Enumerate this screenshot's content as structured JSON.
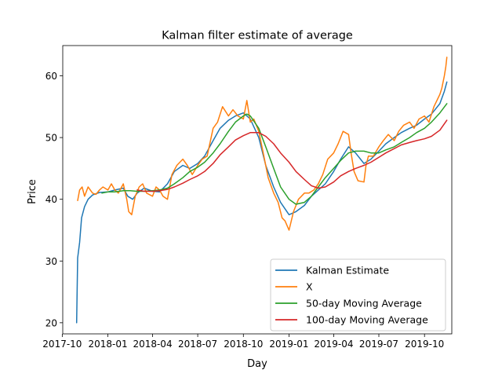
{
  "chart_data": {
    "type": "line",
    "title": "Kalman filter estimate of average",
    "xlabel": "Day",
    "ylabel": "Price",
    "xlim": [
      "2017-10-02",
      "2019-11-25"
    ],
    "ylim": [
      18.2,
      64.9
    ],
    "x_ticks": [
      {
        "date": "2017-10-01",
        "label": "2017-10"
      },
      {
        "date": "2018-01-01",
        "label": "2018-01"
      },
      {
        "date": "2018-04-01",
        "label": "2018-04"
      },
      {
        "date": "2018-07-01",
        "label": "2018-07"
      },
      {
        "date": "2018-10-01",
        "label": "2018-10"
      },
      {
        "date": "2019-01-01",
        "label": "2019-01"
      },
      {
        "date": "2019-04-01",
        "label": "2019-04"
      },
      {
        "date": "2019-07-01",
        "label": "2019-07"
      },
      {
        "date": "2019-10-01",
        "label": "2019-10"
      }
    ],
    "y_ticks": [
      20,
      30,
      40,
      50,
      60
    ],
    "grid": false,
    "legend_position": "lower-right",
    "series": [
      {
        "name": "Kalman Estimate",
        "color": "#1f77b4",
        "x": [
          "2017-10-30",
          "2017-11-01",
          "2017-11-05",
          "2017-11-09",
          "2017-11-15",
          "2017-11-22",
          "2017-12-01",
          "2017-12-15",
          "2018-01-01",
          "2018-01-15",
          "2018-02-01",
          "2018-02-10",
          "2018-02-20",
          "2018-03-01",
          "2018-03-15",
          "2018-04-01",
          "2018-04-15",
          "2018-05-01",
          "2018-05-15",
          "2018-06-01",
          "2018-06-15",
          "2018-07-01",
          "2018-07-15",
          "2018-08-01",
          "2018-08-15",
          "2018-09-01",
          "2018-09-15",
          "2018-10-01",
          "2018-10-15",
          "2018-11-01",
          "2018-11-15",
          "2018-12-01",
          "2018-12-15",
          "2019-01-01",
          "2019-01-15",
          "2019-02-01",
          "2019-02-15",
          "2019-03-01",
          "2019-03-15",
          "2019-04-01",
          "2019-04-15",
          "2019-05-01",
          "2019-05-15",
          "2019-06-01",
          "2019-06-15",
          "2019-07-01",
          "2019-07-15",
          "2019-08-01",
          "2019-08-15",
          "2019-09-01",
          "2019-09-15",
          "2019-10-01",
          "2019-10-15",
          "2019-11-01",
          "2019-11-10",
          "2019-11-15"
        ],
        "y": [
          20.0,
          30.5,
          33.0,
          37.0,
          38.8,
          40.0,
          40.7,
          41.1,
          41.2,
          41.5,
          41.8,
          40.5,
          40.0,
          41.0,
          41.8,
          41.3,
          41.2,
          42.5,
          44.5,
          45.5,
          45.0,
          45.8,
          47.0,
          49.5,
          51.5,
          52.8,
          53.5,
          54.0,
          53.0,
          50.0,
          45.5,
          42.0,
          39.5,
          37.5,
          38.0,
          39.0,
          40.5,
          41.5,
          42.5,
          44.5,
          46.5,
          48.5,
          47.5,
          45.8,
          46.5,
          47.8,
          49.0,
          50.0,
          50.8,
          51.5,
          52.0,
          53.0,
          53.8,
          55.5,
          57.5,
          59.0
        ]
      },
      {
        "name": "X",
        "color": "#ff7f0e",
        "x": [
          "2017-11-01",
          "2017-11-05",
          "2017-11-10",
          "2017-11-15",
          "2017-11-22",
          "2017-12-01",
          "2017-12-08",
          "2017-12-15",
          "2017-12-22",
          "2018-01-01",
          "2018-01-08",
          "2018-01-15",
          "2018-01-22",
          "2018-02-01",
          "2018-02-08",
          "2018-02-12",
          "2018-02-18",
          "2018-02-25",
          "2018-03-05",
          "2018-03-12",
          "2018-03-20",
          "2018-04-01",
          "2018-04-08",
          "2018-04-15",
          "2018-04-22",
          "2018-05-01",
          "2018-05-10",
          "2018-05-20",
          "2018-06-01",
          "2018-06-10",
          "2018-06-20",
          "2018-07-01",
          "2018-07-10",
          "2018-07-20",
          "2018-08-01",
          "2018-08-10",
          "2018-08-20",
          "2018-09-01",
          "2018-09-10",
          "2018-09-20",
          "2018-10-01",
          "2018-10-08",
          "2018-10-15",
          "2018-10-22",
          "2018-11-01",
          "2018-11-10",
          "2018-11-20",
          "2018-12-01",
          "2018-12-10",
          "2018-12-18",
          "2018-12-24",
          "2019-01-01",
          "2019-01-10",
          "2019-01-20",
          "2019-02-01",
          "2019-02-10",
          "2019-02-20",
          "2019-03-01",
          "2019-03-10",
          "2019-03-20",
          "2019-04-01",
          "2019-04-10",
          "2019-04-20",
          "2019-05-01",
          "2019-05-06",
          "2019-05-12",
          "2019-05-20",
          "2019-06-01",
          "2019-06-05",
          "2019-06-10",
          "2019-06-20",
          "2019-07-01",
          "2019-07-10",
          "2019-07-20",
          "2019-08-01",
          "2019-08-10",
          "2019-08-20",
          "2019-09-01",
          "2019-09-10",
          "2019-09-20",
          "2019-10-01",
          "2019-10-10",
          "2019-10-20",
          "2019-11-01",
          "2019-11-05",
          "2019-11-10",
          "2019-11-13",
          "2019-11-15"
        ],
        "y": [
          39.8,
          41.5,
          42.0,
          40.5,
          42.0,
          41.0,
          40.8,
          41.5,
          42.0,
          41.5,
          42.5,
          41.5,
          41.0,
          42.5,
          40.0,
          38.0,
          37.5,
          40.5,
          42.0,
          42.5,
          41.0,
          40.5,
          42.0,
          41.5,
          40.5,
          40.0,
          44.0,
          45.5,
          46.5,
          45.5,
          44.0,
          45.5,
          46.5,
          47.0,
          51.5,
          52.5,
          55.0,
          53.5,
          54.5,
          53.5,
          53.0,
          56.0,
          52.5,
          53.0,
          51.0,
          47.5,
          43.5,
          41.0,
          39.5,
          37.0,
          36.5,
          35.0,
          38.0,
          40.0,
          41.0,
          41.0,
          41.5,
          42.5,
          44.0,
          46.5,
          47.5,
          49.0,
          51.0,
          50.5,
          47.5,
          44.5,
          43.0,
          42.8,
          45.5,
          47.0,
          47.0,
          48.5,
          49.5,
          50.5,
          49.5,
          51.0,
          52.0,
          52.5,
          51.5,
          53.0,
          53.5,
          52.5,
          55.0,
          57.0,
          58.0,
          60.0,
          61.5,
          63.0
        ]
      },
      {
        "name": "50-day Moving Average",
        "color": "#2ca02c",
        "x": [
          "2017-12-20",
          "2018-01-01",
          "2018-01-15",
          "2018-02-01",
          "2018-02-15",
          "2018-03-01",
          "2018-03-15",
          "2018-04-01",
          "2018-04-15",
          "2018-05-01",
          "2018-05-15",
          "2018-06-01",
          "2018-06-15",
          "2018-07-01",
          "2018-07-15",
          "2018-08-01",
          "2018-08-15",
          "2018-09-01",
          "2018-09-15",
          "2018-10-01",
          "2018-10-08",
          "2018-10-15",
          "2018-11-01",
          "2018-11-15",
          "2018-12-01",
          "2018-12-15",
          "2019-01-01",
          "2019-01-15",
          "2019-02-01",
          "2019-02-15",
          "2019-03-01",
          "2019-03-15",
          "2019-04-01",
          "2019-04-15",
          "2019-05-01",
          "2019-05-15",
          "2019-06-01",
          "2019-06-15",
          "2019-07-01",
          "2019-07-15",
          "2019-08-01",
          "2019-08-15",
          "2019-09-01",
          "2019-09-15",
          "2019-10-01",
          "2019-10-15",
          "2019-11-01",
          "2019-11-15"
        ],
        "y": [
          41.0,
          41.2,
          41.2,
          41.4,
          41.4,
          41.3,
          41.3,
          41.4,
          41.5,
          41.8,
          42.5,
          43.5,
          44.5,
          45.2,
          46.0,
          47.5,
          49.0,
          51.0,
          52.5,
          53.5,
          53.8,
          53.5,
          51.5,
          48.5,
          45.0,
          42.0,
          40.0,
          39.2,
          39.5,
          40.5,
          42.0,
          43.5,
          45.0,
          46.3,
          47.5,
          47.8,
          47.8,
          47.5,
          47.5,
          48.0,
          48.5,
          49.2,
          50.0,
          50.8,
          51.5,
          52.5,
          54.0,
          55.5
        ]
      },
      {
        "name": "100-day Moving Average",
        "color": "#d62728",
        "x": [
          "2018-03-01",
          "2018-03-15",
          "2018-04-01",
          "2018-04-15",
          "2018-05-01",
          "2018-05-15",
          "2018-06-01",
          "2018-06-15",
          "2018-07-01",
          "2018-07-15",
          "2018-08-01",
          "2018-08-15",
          "2018-09-01",
          "2018-09-15",
          "2018-10-01",
          "2018-10-15",
          "2018-11-01",
          "2018-11-15",
          "2018-12-01",
          "2018-12-15",
          "2019-01-01",
          "2019-01-15",
          "2019-02-01",
          "2019-02-15",
          "2019-03-01",
          "2019-03-15",
          "2019-04-01",
          "2019-04-15",
          "2019-05-01",
          "2019-05-15",
          "2019-06-01",
          "2019-06-15",
          "2019-07-01",
          "2019-07-15",
          "2019-08-01",
          "2019-08-15",
          "2019-09-01",
          "2019-09-15",
          "2019-10-01",
          "2019-10-15",
          "2019-11-01",
          "2019-11-15"
        ],
        "y": [
          41.5,
          41.3,
          41.3,
          41.4,
          41.6,
          42.0,
          42.6,
          43.2,
          43.8,
          44.5,
          45.8,
          47.2,
          48.5,
          49.6,
          50.3,
          50.8,
          50.8,
          50.2,
          49.0,
          47.5,
          46.0,
          44.5,
          43.2,
          42.2,
          41.8,
          42.0,
          42.8,
          43.8,
          44.5,
          45.0,
          45.5,
          46.0,
          46.8,
          47.5,
          48.2,
          48.8,
          49.2,
          49.5,
          49.8,
          50.2,
          51.2,
          52.8
        ]
      }
    ]
  }
}
